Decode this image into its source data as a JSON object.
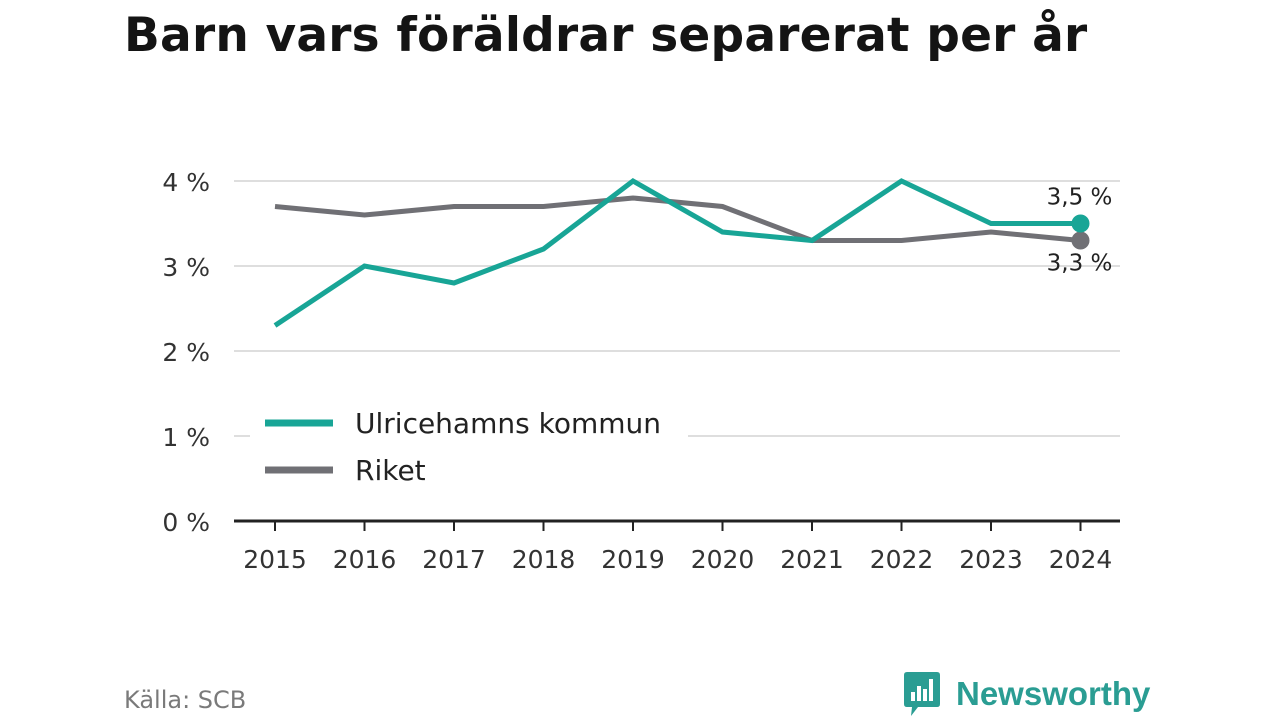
{
  "title": "Barn vars föräldrar separerat per år",
  "source": "Källa: SCB",
  "brand": {
    "name": "Newsworthy",
    "icon": "newsworthy-logo-icon"
  },
  "colors": {
    "accent": "#18A596",
    "secondary": "#707075",
    "grid": "#dedede",
    "axis": "#222222"
  },
  "chart_data": {
    "type": "line",
    "title": "Barn vars föräldrar separerat per år",
    "xlabel": "",
    "ylabel": "",
    "categories": [
      "2015",
      "2016",
      "2017",
      "2018",
      "2019",
      "2020",
      "2021",
      "2022",
      "2023",
      "2024"
    ],
    "ylim": [
      0,
      4
    ],
    "yticks": [
      0,
      1,
      2,
      3,
      4
    ],
    "ytick_labels": [
      "0 %",
      "1 %",
      "2 %",
      "3 %",
      "4 %"
    ],
    "grid": true,
    "legend_position": "bottom-left",
    "series": [
      {
        "name": "Ulricehamns kommun",
        "color": "#18A596",
        "values": [
          2.3,
          3.0,
          2.8,
          3.2,
          4.0,
          3.4,
          3.3,
          4.0,
          3.5,
          3.5
        ],
        "end_label": "3,5 %"
      },
      {
        "name": "Riket",
        "color": "#707075",
        "values": [
          3.7,
          3.6,
          3.7,
          3.7,
          3.8,
          3.7,
          3.3,
          3.3,
          3.4,
          3.3
        ],
        "end_label": "3,3 %"
      }
    ]
  }
}
